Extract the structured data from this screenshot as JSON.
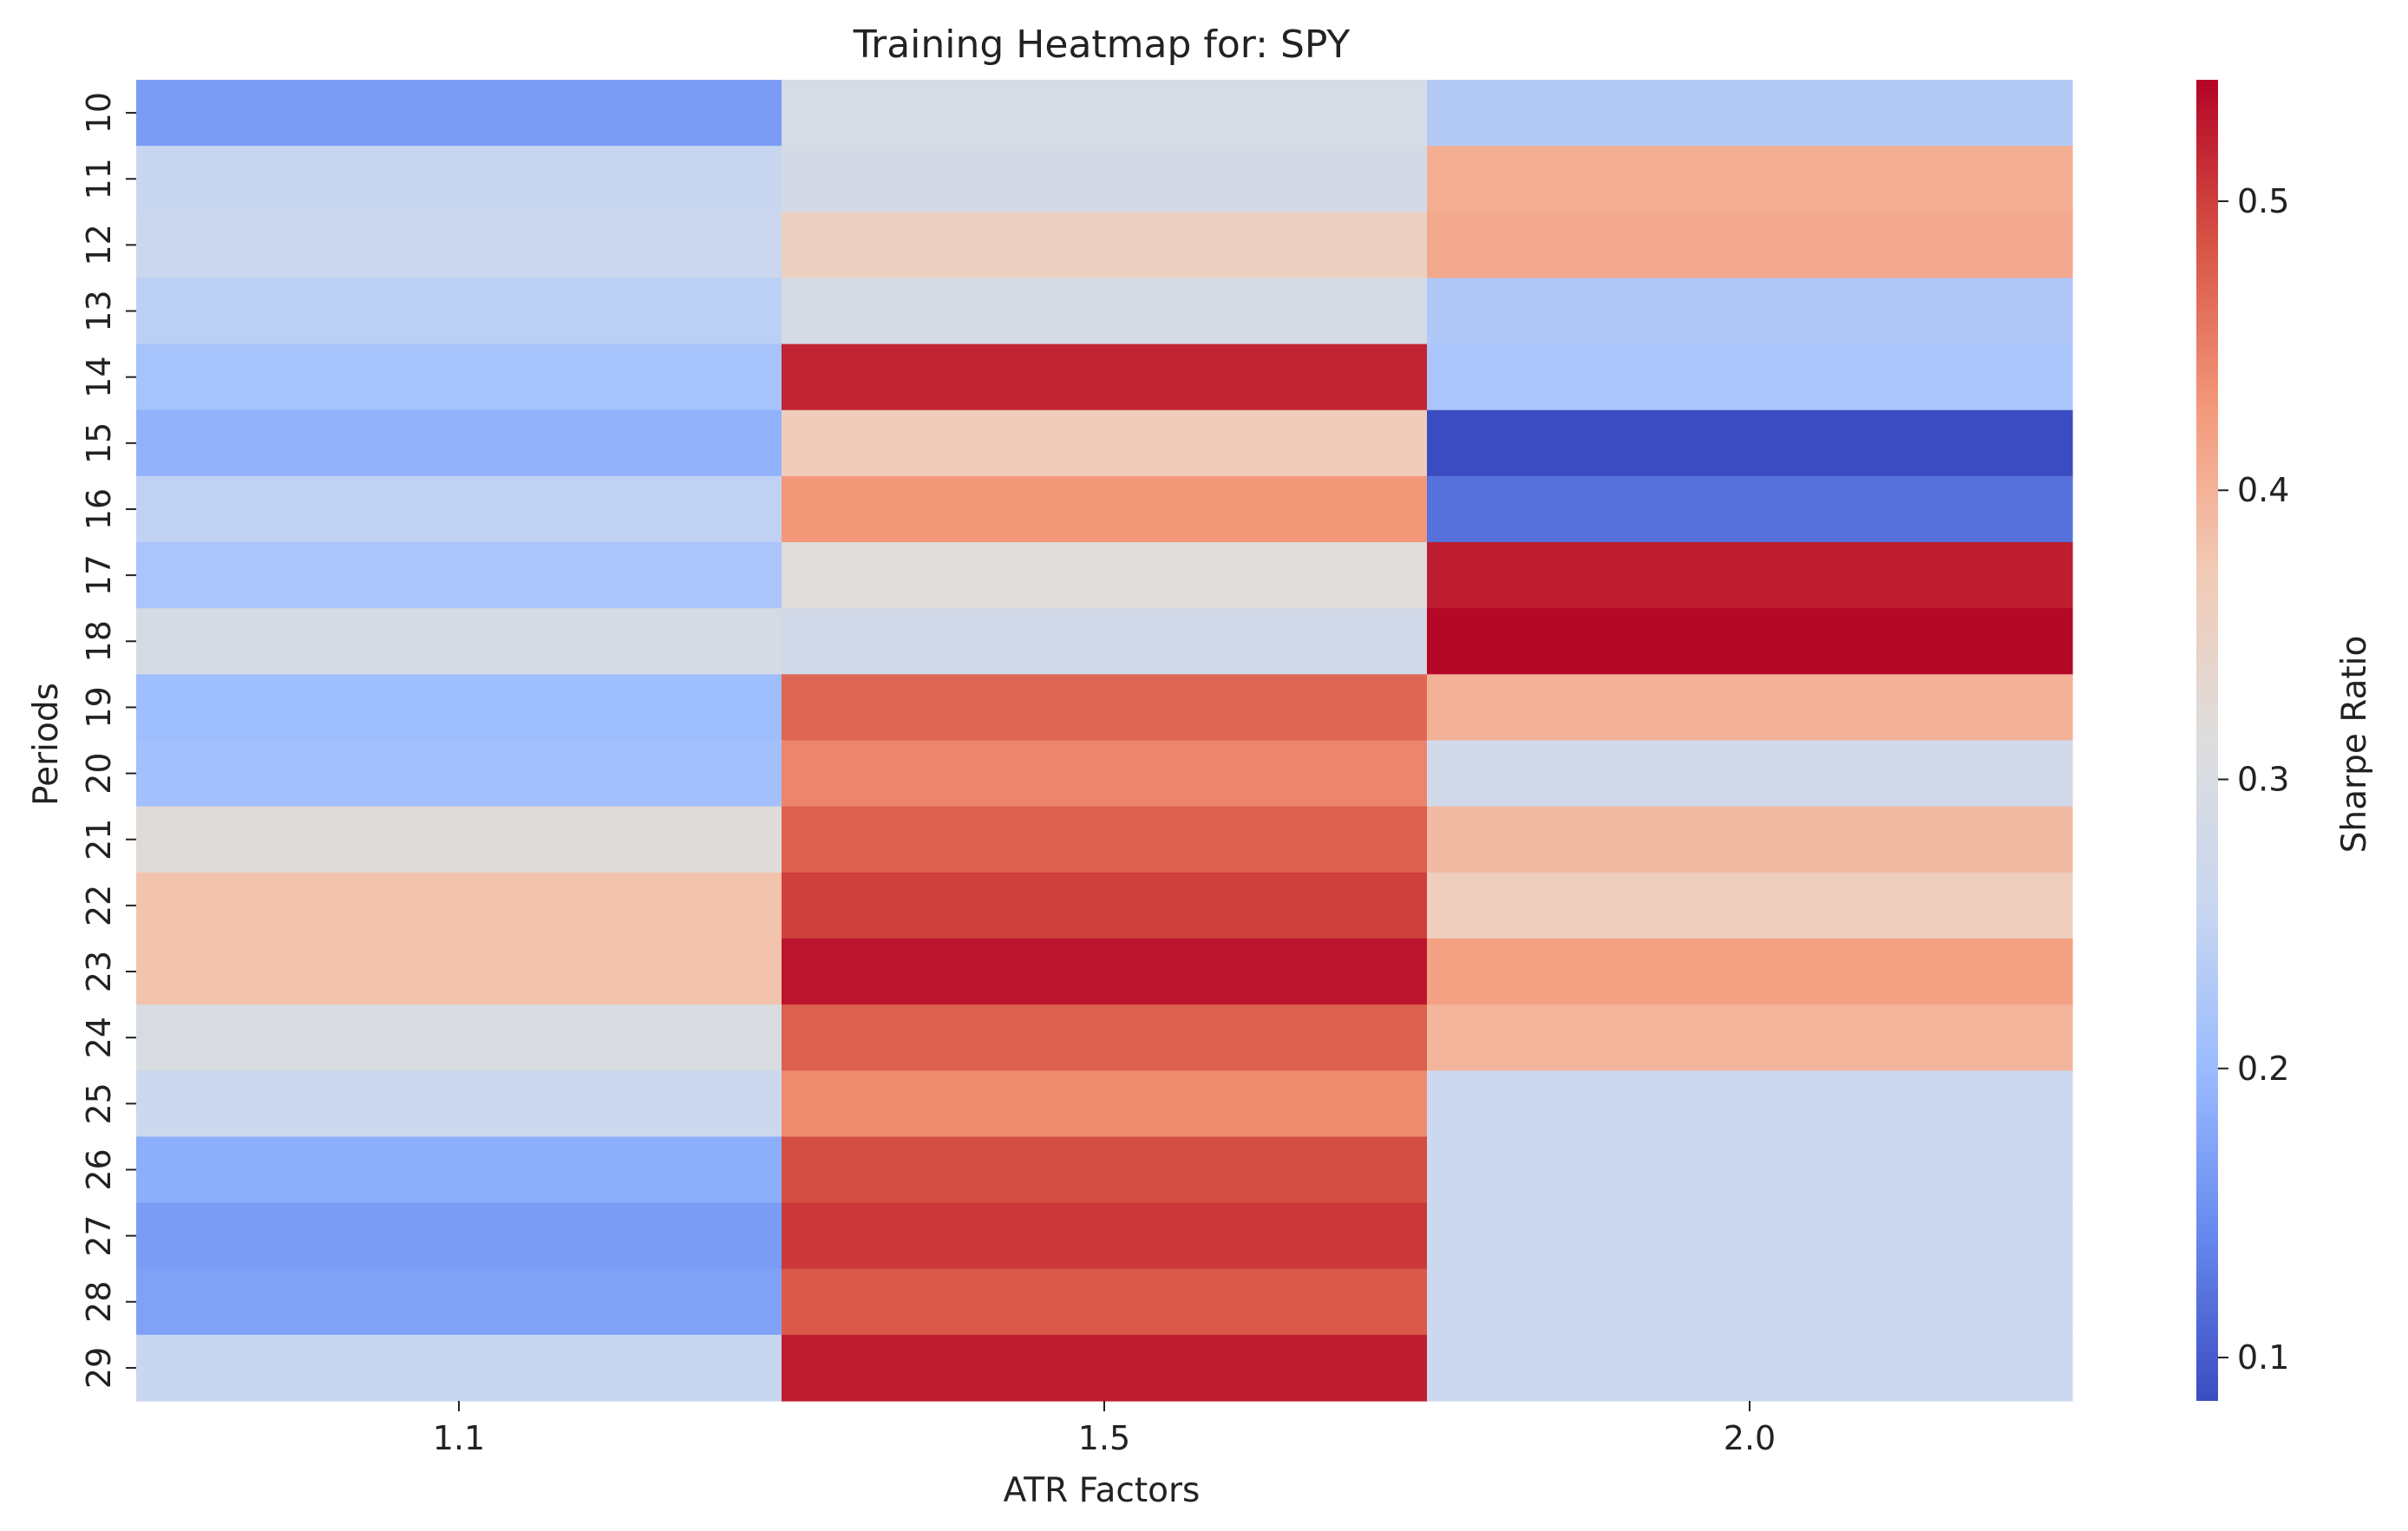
{
  "chart_data": {
    "type": "heatmap",
    "title": "Training Heatmap for: SPY",
    "xlabel": "ATR Factors",
    "ylabel": "Periods",
    "x_categories": [
      "1.1",
      "1.5",
      "2.0"
    ],
    "y_categories": [
      "10",
      "11",
      "12",
      "13",
      "14",
      "15",
      "16",
      "17",
      "18",
      "19",
      "20",
      "21",
      "22",
      "23",
      "24",
      "25",
      "26",
      "27",
      "28",
      "29"
    ],
    "values": [
      [
        0.165,
        0.295,
        0.23
      ],
      [
        0.255,
        0.285,
        0.405
      ],
      [
        0.26,
        0.355,
        0.41
      ],
      [
        0.24,
        0.29,
        0.225
      ],
      [
        0.215,
        0.52,
        0.22
      ],
      [
        0.19,
        0.365,
        0.085
      ],
      [
        0.245,
        0.43,
        0.12
      ],
      [
        0.22,
        0.315,
        0.525
      ],
      [
        0.29,
        0.28,
        0.54
      ],
      [
        0.205,
        0.47,
        0.4
      ],
      [
        0.21,
        0.445,
        0.28
      ],
      [
        0.32,
        0.475,
        0.39
      ],
      [
        0.38,
        0.5,
        0.36
      ],
      [
        0.38,
        0.53,
        0.42
      ],
      [
        0.3,
        0.475,
        0.395
      ],
      [
        0.265,
        0.44,
        0.265
      ],
      [
        0.185,
        0.49,
        0.265
      ],
      [
        0.165,
        0.505,
        0.265
      ],
      [
        0.17,
        0.48,
        0.265
      ],
      [
        0.255,
        0.525,
        0.265
      ]
    ],
    "colorbar": {
      "label": "Sharpe Ratio",
      "vmin": 0.085,
      "vmax": 0.542,
      "ticks": [
        0.1,
        0.2,
        0.3,
        0.4,
        0.5
      ],
      "tick_labels": [
        "0.1",
        "0.2",
        "0.3",
        "0.4",
        "0.5"
      ]
    },
    "colormap": "coolwarm",
    "colormap_stops": [
      "#3b4cc0",
      "#6788ee",
      "#9abbff",
      "#c9d7f0",
      "#dddddd",
      "#f2cbb7",
      "#f49a7b",
      "#d75445",
      "#b40426"
    ]
  }
}
